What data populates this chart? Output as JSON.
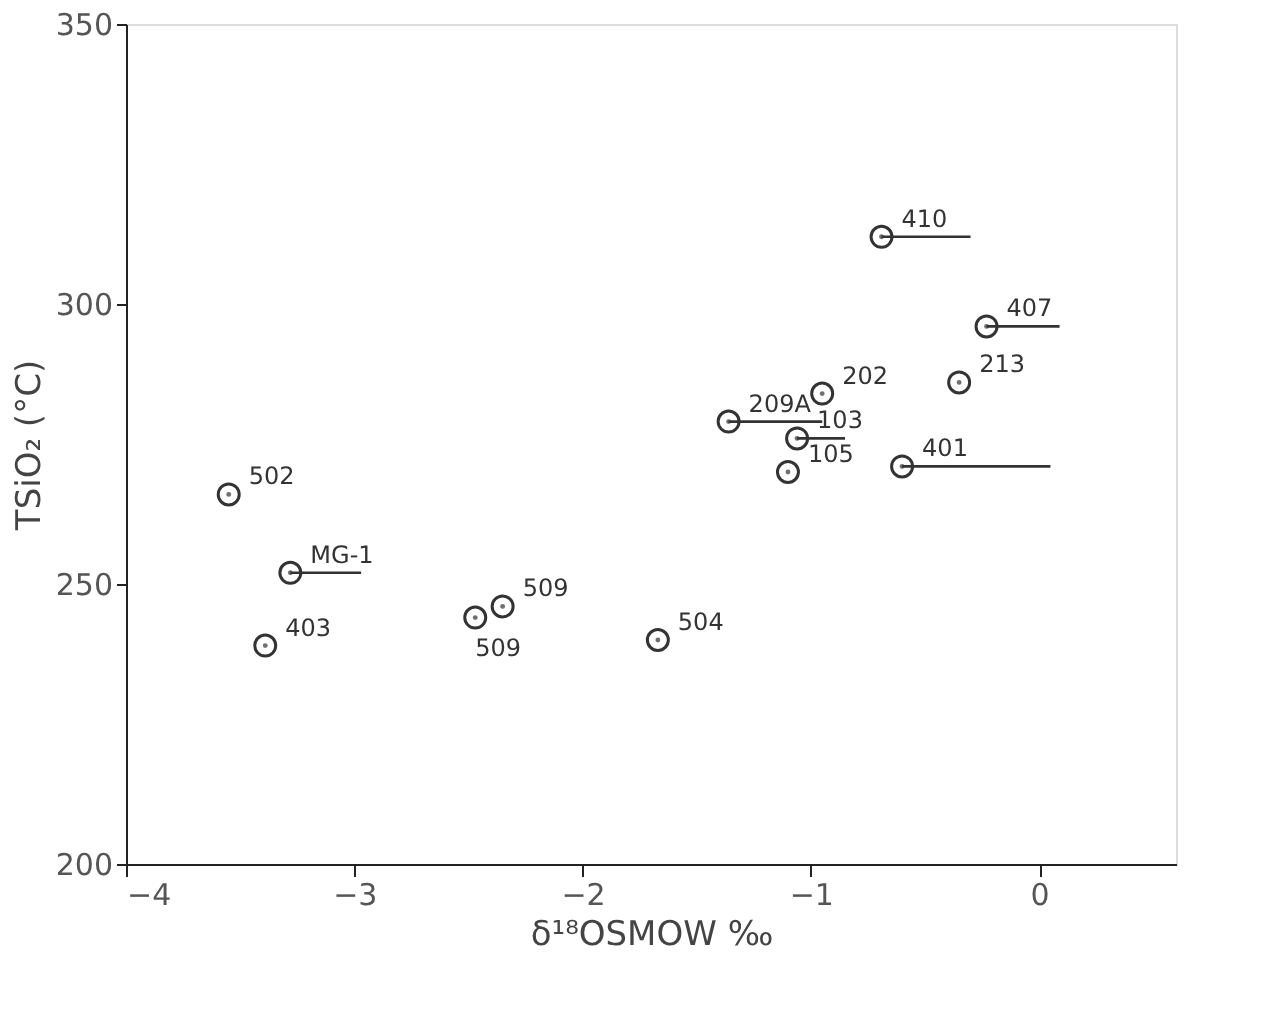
{
  "chart_data": {
    "type": "scatter",
    "xlabel": "δ¹⁸OSMOW   ‰",
    "ylabel": "TSiO₂ (°C)",
    "xlim": [
      -4,
      0.6
    ],
    "xticks": [
      -4,
      -3,
      -2,
      -1,
      0
    ],
    "ylim": [
      200,
      350
    ],
    "yticks": [
      200,
      250,
      300,
      350
    ],
    "grid": false,
    "marker": "circle",
    "series": [
      {
        "color": "#333333",
        "x": [
          -3.55,
          -3.28,
          -3.39,
          -2.47,
          -2.35,
          -1.67,
          -0.69,
          -0.23,
          -1.36,
          -0.95,
          -0.35,
          -1.06,
          -1.1,
          -0.6
        ],
        "values": [
          266,
          252,
          239,
          244,
          246,
          240,
          312,
          296,
          279,
          284,
          286,
          276,
          270,
          271
        ],
        "xerrors": [
          null,
          [
            -3.28,
            -2.97
          ],
          null,
          null,
          null,
          null,
          [
            -0.69,
            -0.3
          ],
          [
            -0.23,
            0.09
          ],
          [
            -1.36,
            -0.95
          ],
          null,
          null,
          [
            -1.06,
            -0.85
          ],
          null,
          [
            -0.6,
            0.05
          ]
        ]
      }
    ],
    "annotations": [
      {
        "text": "502",
        "x": -3.55,
        "y": 266
      },
      {
        "text": "MG-1",
        "x": -3.28,
        "y": 252
      },
      {
        "text": "403",
        "x": -3.39,
        "y": 239
      },
      {
        "text": "509",
        "x": -2.47,
        "y": 244
      },
      {
        "text": "509",
        "x": -2.35,
        "y": 246
      },
      {
        "text": "504",
        "x": -1.67,
        "y": 240
      },
      {
        "text": "410",
        "x": -0.69,
        "y": 312
      },
      {
        "text": "407",
        "x": -0.23,
        "y": 296
      },
      {
        "text": "209A",
        "x": -1.36,
        "y": 279
      },
      {
        "text": "202",
        "x": -0.95,
        "y": 284
      },
      {
        "text": "213",
        "x": -0.35,
        "y": 286
      },
      {
        "text": "103",
        "x": -1.06,
        "y": 276
      },
      {
        "text": "105",
        "x": -1.1,
        "y": 270
      },
      {
        "text": "401",
        "x": -0.6,
        "y": 271
      }
    ]
  }
}
